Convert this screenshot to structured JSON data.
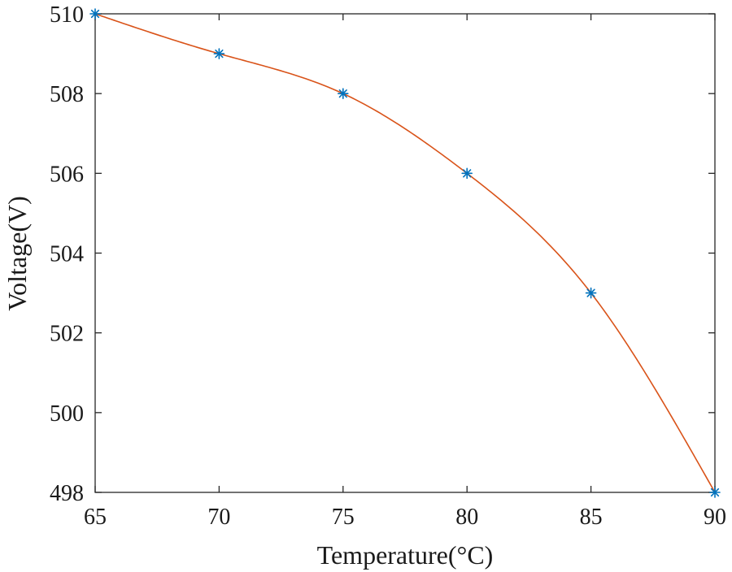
{
  "chart_data": {
    "type": "line",
    "title": "",
    "xlabel": "Temperature(°C)",
    "ylabel": "Voltage(V)",
    "xlim": [
      65,
      90
    ],
    "ylim": [
      498,
      510
    ],
    "xticks": [
      65,
      70,
      75,
      80,
      85,
      90
    ],
    "yticks": [
      498,
      500,
      502,
      504,
      506,
      508,
      510
    ],
    "grid": false,
    "legend": "none",
    "series": [
      {
        "kind": "scatter",
        "marker": "asterisk",
        "color": "#0072bd",
        "x": [
          65,
          70,
          75,
          80,
          85,
          90
        ],
        "y": [
          510,
          509,
          508,
          506,
          503,
          498
        ]
      },
      {
        "kind": "line",
        "style": "smooth-fit",
        "color": "#d95319",
        "x": [
          65,
          70,
          75,
          80,
          85,
          90
        ],
        "y": [
          510,
          509,
          508,
          506,
          503,
          498
        ]
      }
    ]
  }
}
